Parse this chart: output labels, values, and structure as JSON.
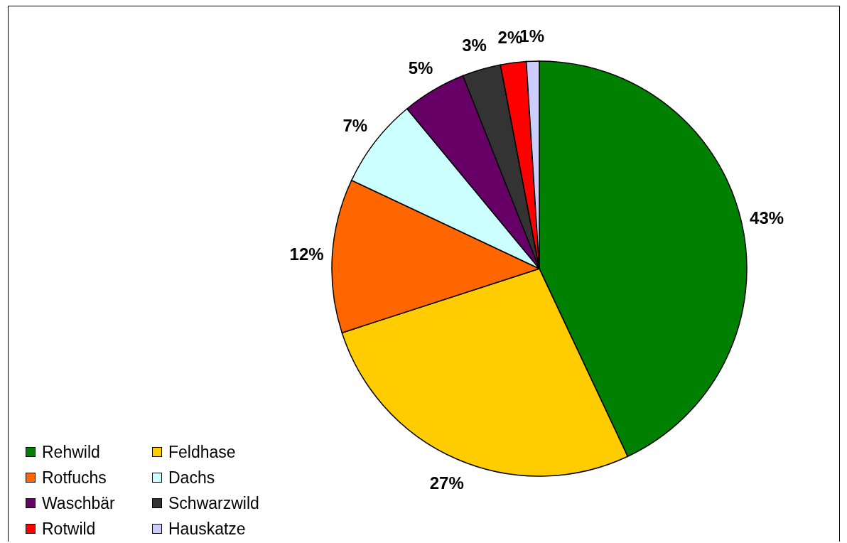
{
  "chart_data": {
    "type": "pie",
    "categories": [
      "Rehwild",
      "Feldhase",
      "Rotfuchs",
      "Dachs",
      "Waschbär",
      "Schwarzwild",
      "Rotwild",
      "Hauskatze"
    ],
    "values": [
      43,
      27,
      12,
      7,
      5,
      3,
      2,
      1
    ],
    "colors": [
      "#008000",
      "#ffcc00",
      "#ff6600",
      "#ccffff",
      "#660066",
      "#333333",
      "#ff0000",
      "#ccccff"
    ],
    "value_labels": [
      "43%",
      "27%",
      "12%",
      "7%",
      "5%",
      "3%",
      "2%",
      "1%"
    ],
    "legend": "bottom left"
  }
}
